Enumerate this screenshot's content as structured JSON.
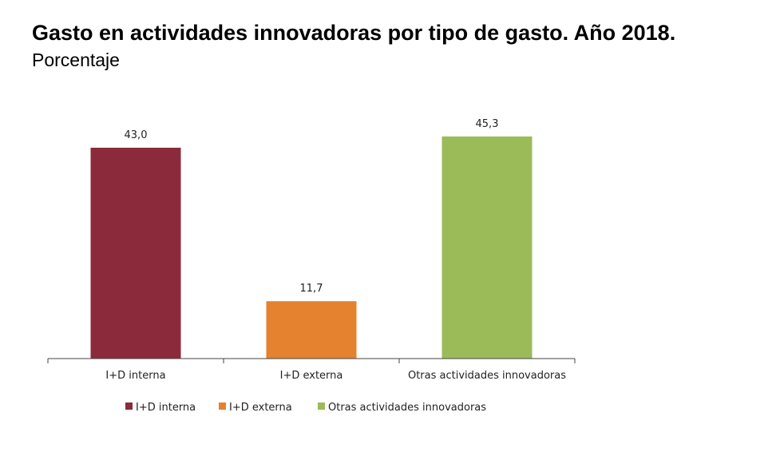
{
  "chart_data": {
    "type": "bar",
    "title": "Gasto en actividades innovadoras por tipo de gasto. Año 2018.",
    "subtitle": "Porcentaje",
    "categories": [
      "I+D interna",
      "I+D externa",
      "Otras actividades innovadoras"
    ],
    "values": [
      43.0,
      11.7,
      45.3
    ],
    "data_labels": [
      "43,0",
      "11,7",
      "45,3"
    ],
    "colors": [
      "#8B2A3A",
      "#E48230",
      "#9BBB59"
    ],
    "ylim": [
      0,
      50
    ],
    "grid": false,
    "legend": {
      "placement": "bottom",
      "entries": [
        "I+D interna",
        "I+D externa",
        "Otras actividades innovadoras"
      ]
    }
  }
}
